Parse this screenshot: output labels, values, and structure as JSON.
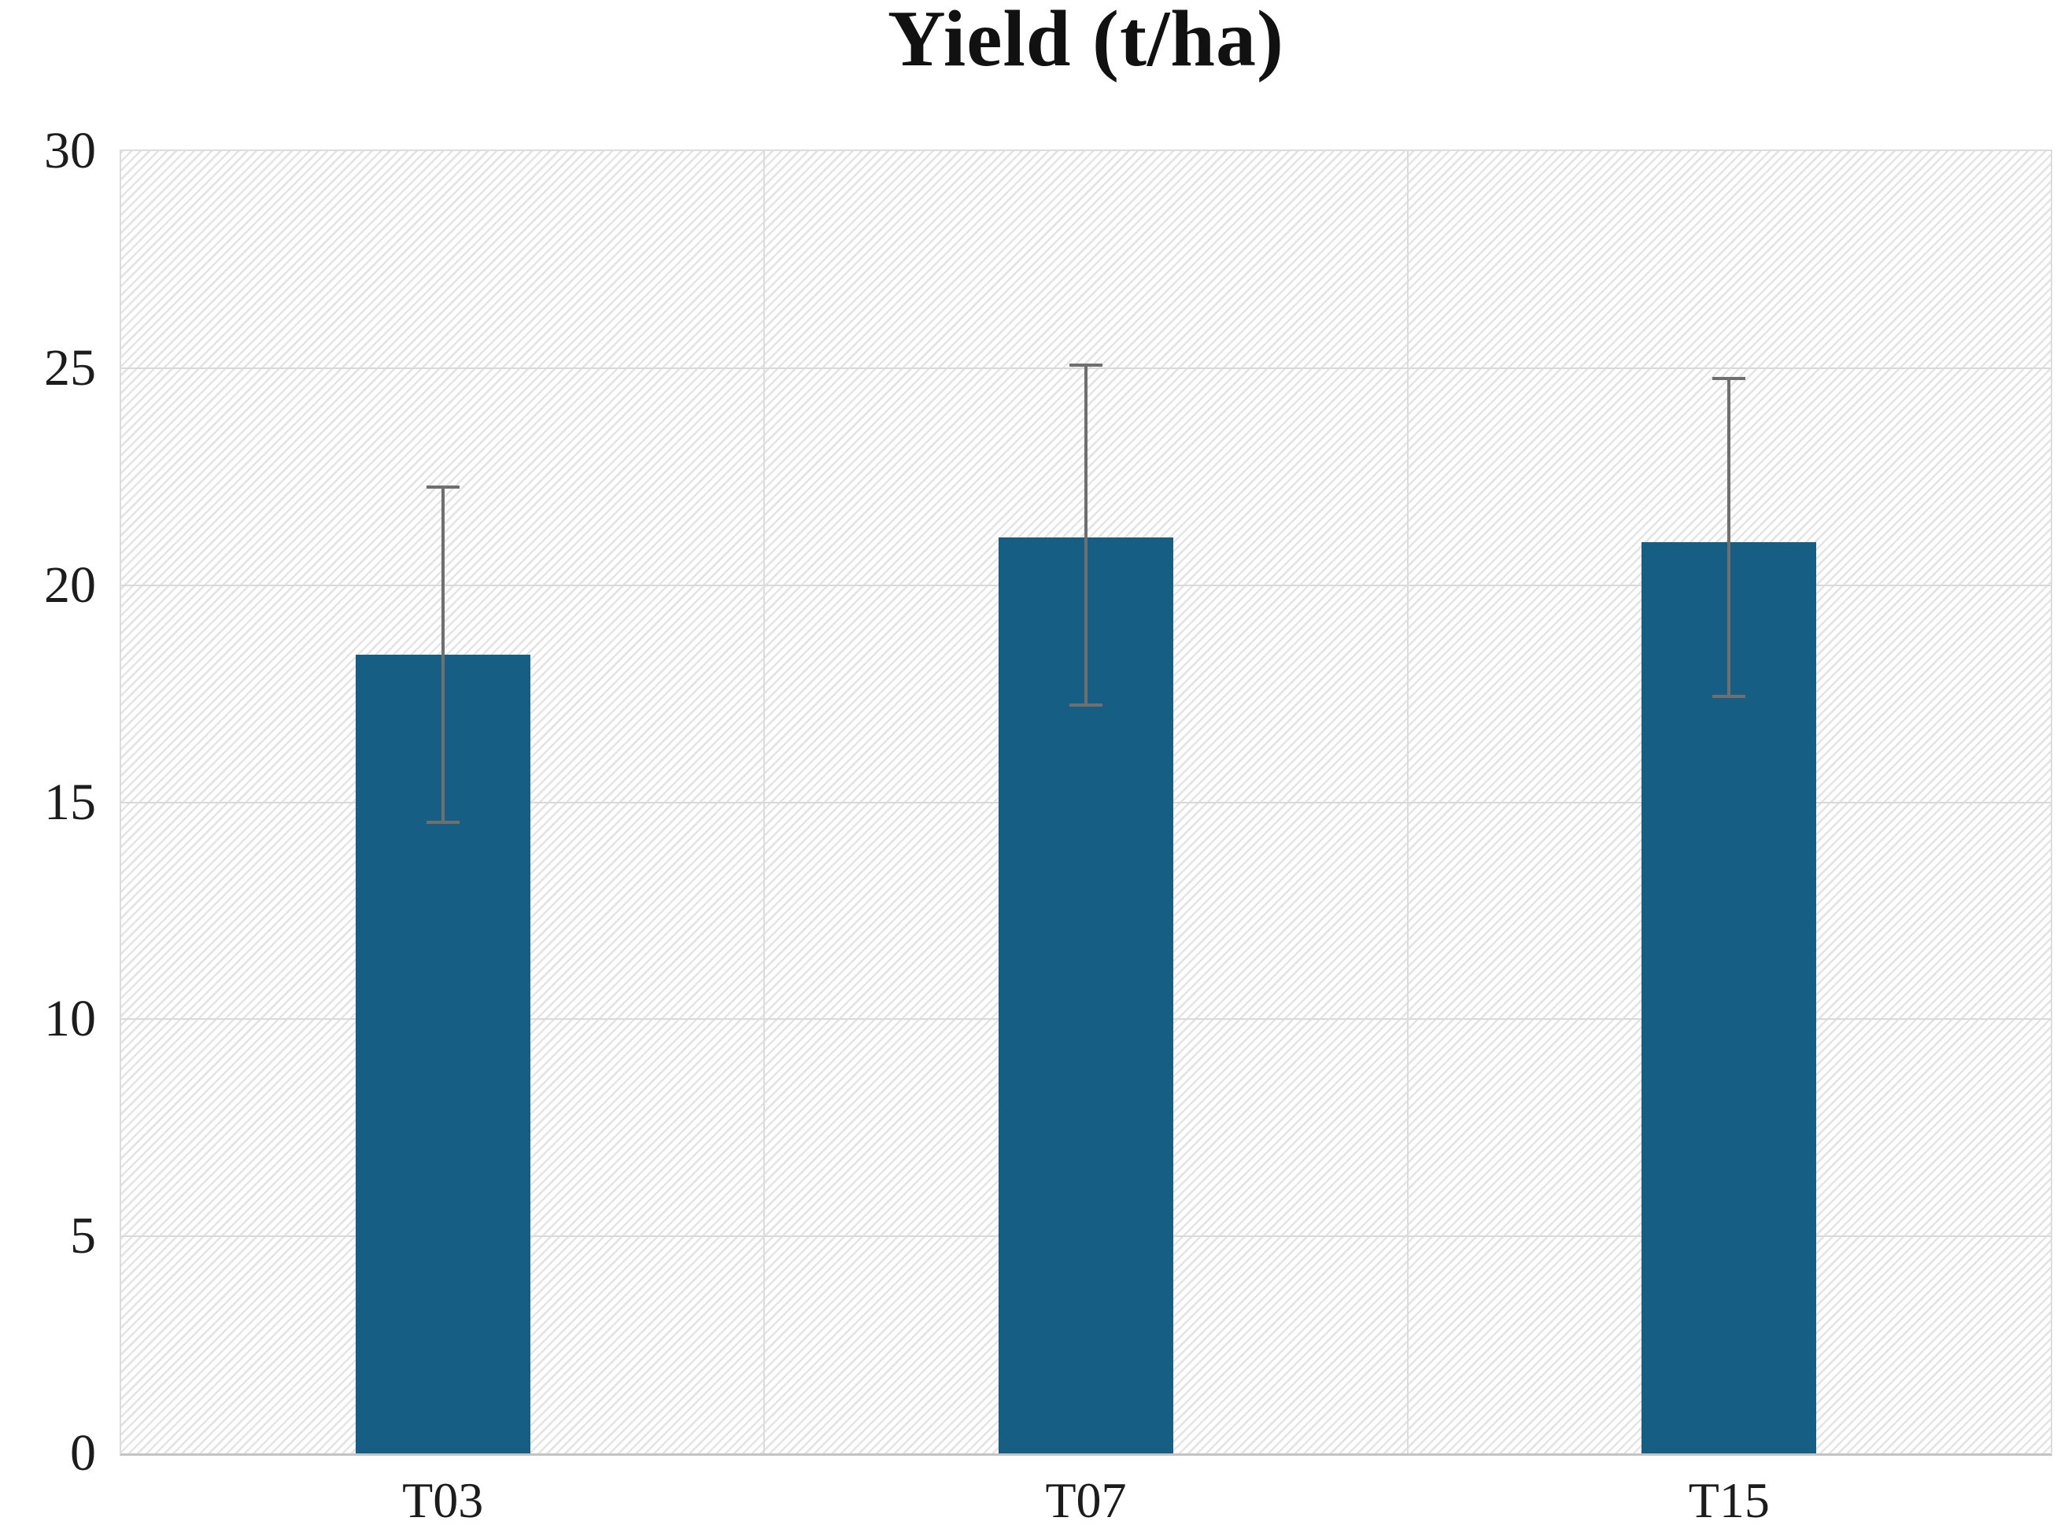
{
  "chart_data": {
    "type": "bar",
    "title": "Yield (t/ha)",
    "categories": [
      "T03",
      "T07",
      "T15"
    ],
    "values": [
      18.4,
      21.1,
      21.0
    ],
    "error_upper": [
      22.3,
      25.1,
      24.8
    ],
    "error_lower": [
      14.5,
      17.2,
      17.4
    ],
    "ylim": [
      0,
      30
    ],
    "yticks": [
      0,
      5,
      10,
      15,
      20,
      25,
      30
    ],
    "ytick_labels": [
      "0",
      "5",
      "10",
      "15",
      "20",
      "25",
      "30"
    ],
    "xlabel": "",
    "ylabel": "",
    "legend": "none",
    "grid": "horizontal every 5 units, vertical at category boundaries",
    "plot_background": "white with light upward-diagonal hatch pattern",
    "colors": {
      "bar_fill": "#165e84",
      "error_bar": "#6f6f6f",
      "gridline": "#d9d9d9",
      "plot_border": "#dcdcdc",
      "hatch_line": "#e4e4e4",
      "text": "#1c1c1c"
    }
  }
}
